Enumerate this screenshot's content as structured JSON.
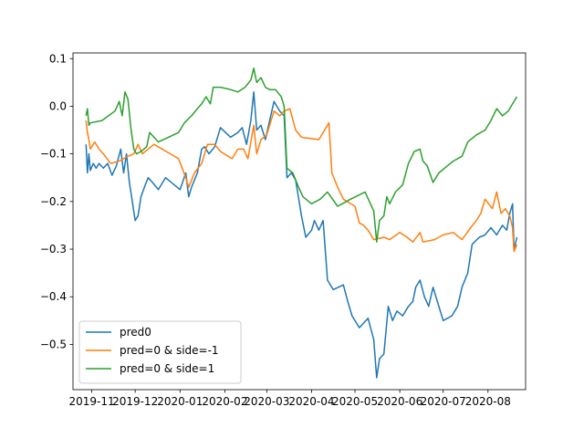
{
  "chart_data": {
    "type": "line",
    "title": "",
    "xlabel": "",
    "ylabel": "",
    "x_ticks": [
      "2019-11",
      "2019-12",
      "2020-01",
      "2020-02",
      "2020-03",
      "2020-04",
      "2020-05",
      "2020-06",
      "2020-07",
      "2020-08"
    ],
    "x_tick_dates": [
      "2019-11-01",
      "2019-12-01",
      "2020-01-01",
      "2020-02-01",
      "2020-03-01",
      "2020-04-01",
      "2020-05-01",
      "2020-06-01",
      "2020-07-01",
      "2020-08-01"
    ],
    "xlim": [
      "2019-10-19",
      "2020-08-27"
    ],
    "y_ticks": [
      0.1,
      0.0,
      -0.1,
      -0.2,
      -0.3,
      -0.4,
      -0.5
    ],
    "y_tick_labels": [
      "0.1",
      "0.0",
      "−0.1",
      "−0.2",
      "−0.3",
      "−0.4",
      "−0.5"
    ],
    "ylim": [
      -0.595,
      0.112
    ],
    "grid": false,
    "legend_position": "lower left",
    "series": [
      {
        "name": "pred0",
        "color": "#1f77b4",
        "points": [
          [
            "2019-10-28",
            -0.08
          ],
          [
            "2019-10-29",
            -0.14
          ],
          [
            "2019-10-30",
            -0.1
          ],
          [
            "2019-10-31",
            -0.135
          ],
          [
            "2019-11-02",
            -0.12
          ],
          [
            "2019-11-04",
            -0.13
          ],
          [
            "2019-11-06",
            -0.12
          ],
          [
            "2019-11-09",
            -0.13
          ],
          [
            "2019-11-12",
            -0.12
          ],
          [
            "2019-11-15",
            -0.145
          ],
          [
            "2019-11-18",
            -0.125
          ],
          [
            "2019-11-21",
            -0.09
          ],
          [
            "2019-11-23",
            -0.14
          ],
          [
            "2019-11-25",
            -0.1
          ],
          [
            "2019-11-27",
            -0.16
          ],
          [
            "2019-11-29",
            -0.2
          ],
          [
            "2019-12-01",
            -0.24
          ],
          [
            "2019-12-03",
            -0.23
          ],
          [
            "2019-12-05",
            -0.19
          ],
          [
            "2019-12-08",
            -0.165
          ],
          [
            "2019-12-10",
            -0.15
          ],
          [
            "2019-12-13",
            -0.16
          ],
          [
            "2019-12-17",
            -0.175
          ],
          [
            "2019-12-22",
            -0.15
          ],
          [
            "2020-01-01",
            -0.175
          ],
          [
            "2020-01-05",
            -0.14
          ],
          [
            "2020-01-07",
            -0.19
          ],
          [
            "2020-01-09",
            -0.17
          ],
          [
            "2020-01-13",
            -0.14
          ],
          [
            "2020-01-16",
            -0.09
          ],
          [
            "2020-01-18",
            -0.085
          ],
          [
            "2020-01-21",
            -0.1
          ],
          [
            "2020-01-25",
            -0.085
          ],
          [
            "2020-01-29",
            -0.045
          ],
          [
            "2020-02-05",
            -0.065
          ],
          [
            "2020-02-10",
            -0.055
          ],
          [
            "2020-02-13",
            -0.045
          ],
          [
            "2020-02-16",
            -0.08
          ],
          [
            "2020-02-19",
            -0.03
          ],
          [
            "2020-02-21",
            0.03
          ],
          [
            "2020-02-23",
            -0.05
          ],
          [
            "2020-02-26",
            -0.04
          ],
          [
            "2020-02-29",
            -0.07
          ],
          [
            "2020-03-03",
            -0.03
          ],
          [
            "2020-03-06",
            0.01
          ],
          [
            "2020-03-10",
            -0.01
          ],
          [
            "2020-03-13",
            -0.02
          ],
          [
            "2020-03-15",
            -0.15
          ],
          [
            "2020-03-18",
            -0.14
          ],
          [
            "2020-03-21",
            -0.155
          ],
          [
            "2020-03-25",
            -0.23
          ],
          [
            "2020-03-28",
            -0.275
          ],
          [
            "2020-04-01",
            -0.26
          ],
          [
            "2020-04-03",
            -0.24
          ],
          [
            "2020-04-06",
            -0.26
          ],
          [
            "2020-04-09",
            -0.24
          ],
          [
            "2020-04-12",
            -0.365
          ],
          [
            "2020-04-16",
            -0.385
          ],
          [
            "2020-04-23",
            -0.375
          ],
          [
            "2020-04-26",
            -0.41
          ],
          [
            "2020-04-29",
            -0.44
          ],
          [
            "2020-05-04",
            -0.465
          ],
          [
            "2020-05-10",
            -0.445
          ],
          [
            "2020-05-14",
            -0.49
          ],
          [
            "2020-05-16",
            -0.57
          ],
          [
            "2020-05-18",
            -0.53
          ],
          [
            "2020-05-21",
            -0.52
          ],
          [
            "2020-05-24",
            -0.42
          ],
          [
            "2020-05-27",
            -0.45
          ],
          [
            "2020-05-30",
            -0.43
          ],
          [
            "2020-06-03",
            -0.44
          ],
          [
            "2020-06-07",
            -0.42
          ],
          [
            "2020-06-10",
            -0.41
          ],
          [
            "2020-06-12",
            -0.38
          ],
          [
            "2020-06-15",
            -0.365
          ],
          [
            "2020-06-18",
            -0.4
          ],
          [
            "2020-06-21",
            -0.42
          ],
          [
            "2020-06-24",
            -0.38
          ],
          [
            "2020-06-27",
            -0.41
          ],
          [
            "2020-07-01",
            -0.45
          ],
          [
            "2020-07-07",
            -0.44
          ],
          [
            "2020-07-11",
            -0.42
          ],
          [
            "2020-07-14",
            -0.38
          ],
          [
            "2020-07-18",
            -0.35
          ],
          [
            "2020-07-21",
            -0.29
          ],
          [
            "2020-07-26",
            -0.275
          ],
          [
            "2020-07-30",
            -0.27
          ],
          [
            "2020-08-03",
            -0.255
          ],
          [
            "2020-08-07",
            -0.27
          ],
          [
            "2020-08-11",
            -0.25
          ],
          [
            "2020-08-14",
            -0.26
          ],
          [
            "2020-08-16",
            -0.225
          ],
          [
            "2020-08-18",
            -0.205
          ],
          [
            "2020-08-19",
            -0.3
          ],
          [
            "2020-08-21",
            -0.275
          ]
        ]
      },
      {
        "name": "pred=0 & side=-1",
        "color": "#ff7f0e",
        "points": [
          [
            "2019-10-28",
            -0.03
          ],
          [
            "2019-10-29",
            -0.055
          ],
          [
            "2019-10-30",
            -0.07
          ],
          [
            "2019-10-31",
            -0.09
          ],
          [
            "2019-11-03",
            -0.075
          ],
          [
            "2019-11-06",
            -0.09
          ],
          [
            "2019-11-09",
            -0.1
          ],
          [
            "2019-11-14",
            -0.12
          ],
          [
            "2019-11-20",
            -0.115
          ],
          [
            "2019-11-26",
            -0.105
          ],
          [
            "2019-11-30",
            -0.1
          ],
          [
            "2019-12-03",
            -0.08
          ],
          [
            "2019-12-06",
            -0.1
          ],
          [
            "2019-12-14",
            -0.08
          ],
          [
            "2019-12-31",
            -0.11
          ],
          [
            "2020-01-05",
            -0.15
          ],
          [
            "2020-01-07",
            -0.17
          ],
          [
            "2020-01-11",
            -0.14
          ],
          [
            "2020-01-16",
            -0.12
          ],
          [
            "2020-01-20",
            -0.08
          ],
          [
            "2020-01-25",
            -0.08
          ],
          [
            "2020-01-29",
            -0.095
          ],
          [
            "2020-02-06",
            -0.11
          ],
          [
            "2020-02-10",
            -0.09
          ],
          [
            "2020-02-14",
            -0.09
          ],
          [
            "2020-02-17",
            -0.11
          ],
          [
            "2020-02-21",
            -0.04
          ],
          [
            "2020-02-23",
            -0.1
          ],
          [
            "2020-02-26",
            -0.07
          ],
          [
            "2020-03-01",
            -0.06
          ],
          [
            "2020-03-06",
            -0.01
          ],
          [
            "2020-03-10",
            -0.02
          ],
          [
            "2020-03-13",
            -0.01
          ],
          [
            "2020-03-17",
            -0.005
          ],
          [
            "2020-03-21",
            -0.05
          ],
          [
            "2020-03-25",
            -0.065
          ],
          [
            "2020-04-06",
            -0.07
          ],
          [
            "2020-04-09",
            -0.055
          ],
          [
            "2020-04-13",
            -0.035
          ],
          [
            "2020-04-15",
            -0.14
          ],
          [
            "2020-04-19",
            -0.17
          ],
          [
            "2020-04-23",
            -0.195
          ],
          [
            "2020-05-01",
            -0.21
          ],
          [
            "2020-05-04",
            -0.245
          ],
          [
            "2020-05-07",
            -0.25
          ],
          [
            "2020-05-10",
            -0.26
          ],
          [
            "2020-05-14",
            -0.28
          ],
          [
            "2020-05-21",
            -0.275
          ],
          [
            "2020-05-25",
            -0.28
          ],
          [
            "2020-06-01",
            -0.265
          ],
          [
            "2020-06-06",
            -0.275
          ],
          [
            "2020-06-10",
            -0.285
          ],
          [
            "2020-06-15",
            -0.265
          ],
          [
            "2020-06-17",
            -0.285
          ],
          [
            "2020-06-25",
            -0.28
          ],
          [
            "2020-07-01",
            -0.27
          ],
          [
            "2020-07-08",
            -0.265
          ],
          [
            "2020-07-14",
            -0.28
          ],
          [
            "2020-07-20",
            -0.255
          ],
          [
            "2020-07-24",
            -0.24
          ],
          [
            "2020-07-27",
            -0.225
          ],
          [
            "2020-07-30",
            -0.195
          ],
          [
            "2020-08-04",
            -0.215
          ],
          [
            "2020-08-07",
            -0.18
          ],
          [
            "2020-08-10",
            -0.225
          ],
          [
            "2020-08-13",
            -0.215
          ],
          [
            "2020-08-16",
            -0.23
          ],
          [
            "2020-08-18",
            -0.255
          ],
          [
            "2020-08-19",
            -0.305
          ],
          [
            "2020-08-21",
            -0.29
          ]
        ]
      },
      {
        "name": "pred=0 & side=1",
        "color": "#2ca02c",
        "points": [
          [
            "2019-10-28",
            -0.02
          ],
          [
            "2019-10-29",
            -0.005
          ],
          [
            "2019-10-30",
            -0.04
          ],
          [
            "2019-10-31",
            -0.035
          ],
          [
            "2019-11-08",
            -0.03
          ],
          [
            "2019-11-17",
            -0.01
          ],
          [
            "2019-11-20",
            0.01
          ],
          [
            "2019-11-22",
            -0.02
          ],
          [
            "2019-11-24",
            0.03
          ],
          [
            "2019-11-26",
            0.015
          ],
          [
            "2019-11-28",
            -0.045
          ],
          [
            "2019-11-30",
            -0.09
          ],
          [
            "2019-12-02",
            -0.1
          ],
          [
            "2019-12-05",
            -0.095
          ],
          [
            "2019-12-09",
            -0.085
          ],
          [
            "2019-12-11",
            -0.055
          ],
          [
            "2019-12-14",
            -0.065
          ],
          [
            "2019-12-17",
            -0.075
          ],
          [
            "2019-12-24",
            -0.065
          ],
          [
            "2019-12-31",
            -0.055
          ],
          [
            "2020-01-04",
            -0.035
          ],
          [
            "2020-01-09",
            -0.02
          ],
          [
            "2020-01-13",
            -0.005
          ],
          [
            "2020-01-16",
            0.005
          ],
          [
            "2020-01-19",
            0.02
          ],
          [
            "2020-01-22",
            0.005
          ],
          [
            "2020-01-24",
            0.04
          ],
          [
            "2020-01-29",
            0.04
          ],
          [
            "2020-02-05",
            0.035
          ],
          [
            "2020-02-10",
            0.03
          ],
          [
            "2020-02-15",
            0.04
          ],
          [
            "2020-02-19",
            0.055
          ],
          [
            "2020-02-21",
            0.08
          ],
          [
            "2020-02-23",
            0.05
          ],
          [
            "2020-02-26",
            0.06
          ],
          [
            "2020-02-29",
            0.04
          ],
          [
            "2020-03-03",
            0.035
          ],
          [
            "2020-03-07",
            0.035
          ],
          [
            "2020-03-11",
            0.02
          ],
          [
            "2020-03-13",
            0.0
          ],
          [
            "2020-03-15",
            -0.13
          ],
          [
            "2020-03-19",
            -0.14
          ],
          [
            "2020-03-23",
            -0.17
          ],
          [
            "2020-03-26",
            -0.19
          ],
          [
            "2020-04-01",
            -0.205
          ],
          [
            "2020-04-07",
            -0.195
          ],
          [
            "2020-04-12",
            -0.18
          ],
          [
            "2020-04-19",
            -0.21
          ],
          [
            "2020-04-28",
            -0.195
          ],
          [
            "2020-05-08",
            -0.18
          ],
          [
            "2020-05-14",
            -0.22
          ],
          [
            "2020-05-16",
            -0.285
          ],
          [
            "2020-05-18",
            -0.24
          ],
          [
            "2020-05-21",
            -0.23
          ],
          [
            "2020-05-23",
            -0.19
          ],
          [
            "2020-05-25",
            -0.205
          ],
          [
            "2020-05-29",
            -0.18
          ],
          [
            "2020-06-03",
            -0.165
          ],
          [
            "2020-06-07",
            -0.12
          ],
          [
            "2020-06-11",
            -0.095
          ],
          [
            "2020-06-15",
            -0.09
          ],
          [
            "2020-06-17",
            -0.115
          ],
          [
            "2020-06-20",
            -0.125
          ],
          [
            "2020-06-24",
            -0.16
          ],
          [
            "2020-06-28",
            -0.14
          ],
          [
            "2020-07-04",
            -0.125
          ],
          [
            "2020-07-08",
            -0.115
          ],
          [
            "2020-07-14",
            -0.105
          ],
          [
            "2020-07-18",
            -0.075
          ],
          [
            "2020-07-24",
            -0.06
          ],
          [
            "2020-07-30",
            -0.05
          ],
          [
            "2020-08-03",
            -0.03
          ],
          [
            "2020-08-07",
            -0.005
          ],
          [
            "2020-08-11",
            -0.02
          ],
          [
            "2020-08-15",
            -0.01
          ],
          [
            "2020-08-18",
            0.005
          ],
          [
            "2020-08-21",
            0.02
          ]
        ]
      }
    ]
  }
}
